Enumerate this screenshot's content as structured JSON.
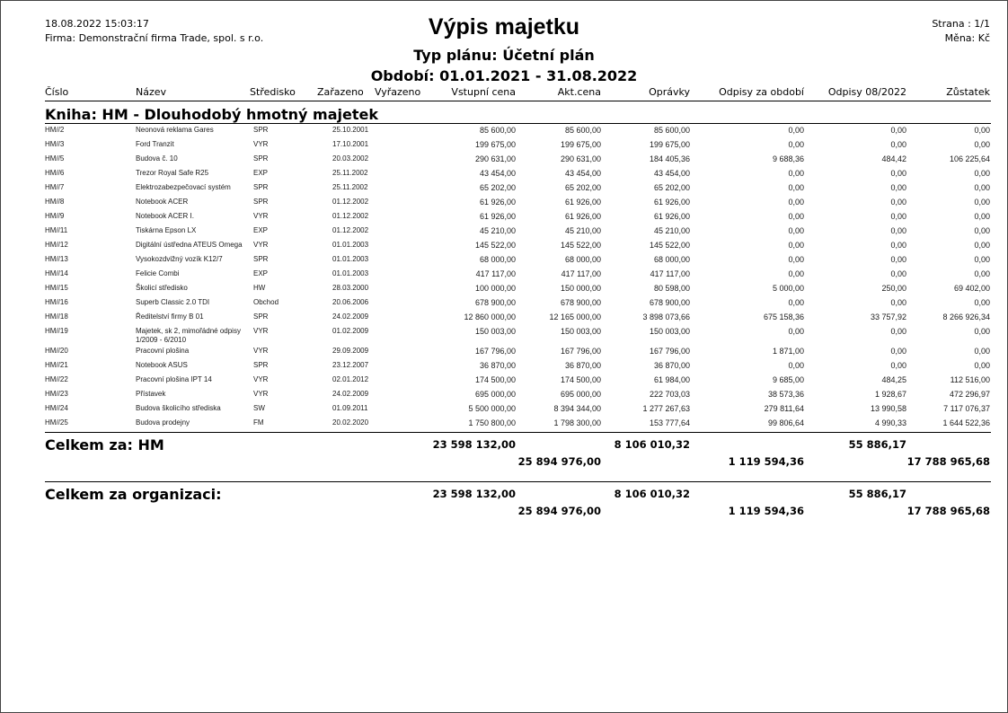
{
  "header": {
    "datetime": "18.08.2022 15:03:17",
    "company": "Firma: Demonstrační firma Trade, spol. s r.o.",
    "title": "Výpis majetku",
    "plan_type": "Typ plánu: Účetní plán",
    "period": "Období: 01.01.2021 - 31.08.2022",
    "page": "Strana : 1/1",
    "currency": "Měna: Kč"
  },
  "columns": [
    "Číslo",
    "Název",
    "Středisko",
    "Zařazeno",
    "Vyřazeno",
    "Vstupní cena",
    "Akt.cena",
    "Oprávky",
    "Odpisy za období",
    "Odpisy 08/2022",
    "Zůstatek"
  ],
  "book_title": "Kniha: HM - Dlouhodobý hmotný majetek",
  "rows": [
    [
      "HM//2",
      "Neonová reklama Gares",
      "SPR",
      "25.10.2001",
      "",
      "85 600,00",
      "85 600,00",
      "85 600,00",
      "0,00",
      "0,00",
      "0,00"
    ],
    [
      "HM//3",
      "Ford Tranzit",
      "VYR",
      "17.10.2001",
      "",
      "199 675,00",
      "199 675,00",
      "199 675,00",
      "0,00",
      "0,00",
      "0,00"
    ],
    [
      "HM//5",
      "Budova č. 10",
      "SPR",
      "20.03.2002",
      "",
      "290 631,00",
      "290 631,00",
      "184 405,36",
      "9 688,36",
      "484,42",
      "106 225,64"
    ],
    [
      "HM//6",
      "Trezor Royal Safe R25",
      "EXP",
      "25.11.2002",
      "",
      "43 454,00",
      "43 454,00",
      "43 454,00",
      "0,00",
      "0,00",
      "0,00"
    ],
    [
      "HM//7",
      "Elektrozabezpečovací systém",
      "SPR",
      "25.11.2002",
      "",
      "65 202,00",
      "65 202,00",
      "65 202,00",
      "0,00",
      "0,00",
      "0,00"
    ],
    [
      "HM//8",
      "Notebook ACER",
      "SPR",
      "01.12.2002",
      "",
      "61 926,00",
      "61 926,00",
      "61 926,00",
      "0,00",
      "0,00",
      "0,00"
    ],
    [
      "HM//9",
      "Notebook ACER I.",
      "VYR",
      "01.12.2002",
      "",
      "61 926,00",
      "61 926,00",
      "61 926,00",
      "0,00",
      "0,00",
      "0,00"
    ],
    [
      "HM//11",
      "Tiskárna Epson LX",
      "EXP",
      "01.12.2002",
      "",
      "45 210,00",
      "45 210,00",
      "45 210,00",
      "0,00",
      "0,00",
      "0,00"
    ],
    [
      "HM//12",
      "Digitální ústředna ATEUS Omega",
      "VYR",
      "01.01.2003",
      "",
      "145 522,00",
      "145 522,00",
      "145 522,00",
      "0,00",
      "0,00",
      "0,00"
    ],
    [
      "HM//13",
      "Vysokozdvižný vozík K12/7",
      "SPR",
      "01.01.2003",
      "",
      "68 000,00",
      "68 000,00",
      "68 000,00",
      "0,00",
      "0,00",
      "0,00"
    ],
    [
      "HM//14",
      "Felicie Combi",
      "EXP",
      "01.01.2003",
      "",
      "417 117,00",
      "417 117,00",
      "417 117,00",
      "0,00",
      "0,00",
      "0,00"
    ],
    [
      "HM//15",
      "Školicí středisko",
      "HW",
      "28.03.2000",
      "",
      "100 000,00",
      "150 000,00",
      "80 598,00",
      "5 000,00",
      "250,00",
      "69 402,00"
    ],
    [
      "HM//16",
      "Superb Classic  2.0 TDI",
      "Obchod",
      "20.06.2006",
      "",
      "678 900,00",
      "678 900,00",
      "678 900,00",
      "0,00",
      "0,00",
      "0,00"
    ],
    [
      "HM//18",
      "Ředitelství firmy B 01",
      "SPR",
      "24.02.2009",
      "",
      "12 860 000,00",
      "12 165 000,00",
      "3 898 073,66",
      "675 158,36",
      "33 757,92",
      "8 266 926,34"
    ],
    [
      "HM//19",
      "Majetek, sk 2, mimořádné odpisy 1/2009 - 6/2010",
      "VYR",
      "01.02.2009",
      "",
      "150 003,00",
      "150 003,00",
      "150 003,00",
      "0,00",
      "0,00",
      "0,00"
    ],
    [
      "HM//20",
      "Pracovní plošina",
      "VYR",
      "29.09.2009",
      "",
      "167 796,00",
      "167 796,00",
      "167 796,00",
      "1 871,00",
      "0,00",
      "0,00"
    ],
    [
      "HM//21",
      "Notebook ASUS",
      "SPR",
      "23.12.2007",
      "",
      "36 870,00",
      "36 870,00",
      "36 870,00",
      "0,00",
      "0,00",
      "0,00"
    ],
    [
      "HM//22",
      "Pracovní plošina IPT 14",
      "VYR",
      "02.01.2012",
      "",
      "174 500,00",
      "174 500,00",
      "61 984,00",
      "9 685,00",
      "484,25",
      "112 516,00"
    ],
    [
      "HM//23",
      "Přístavek",
      "VYR",
      "24.02.2009",
      "",
      "695 000,00",
      "695 000,00",
      "222 703,03",
      "38 573,36",
      "1 928,67",
      "472 296,97"
    ],
    [
      "HM//24",
      "Budova školicího střediska",
      "SW",
      "01.09.2011",
      "",
      "5 500 000,00",
      "8 394 344,00",
      "1 277 267,63",
      "279 811,64",
      "13 990,58",
      "7 117 076,37"
    ],
    [
      "HM//25",
      "Budova prodejny",
      "FM",
      "20.02.2020",
      "",
      "1 750 800,00",
      "1 798 300,00",
      "153 777,64",
      "99 806,64",
      "4 990,33",
      "1 644 522,36"
    ]
  ],
  "totals_book": {
    "label": "Celkem za: HM",
    "vstupni_cena": "23 598 132,00",
    "akt_cena": "25 894 976,00",
    "opravky": "8 106 010,32",
    "odpisy_obdobi": "1 119 594,36",
    "odpisy_mesic": "55 886,17",
    "zustatek": "17 788 965,68"
  },
  "totals_org": {
    "label": "Celkem za organizaci:",
    "vstupni_cena": "23 598 132,00",
    "akt_cena": "25 894 976,00",
    "opravky": "8 106 010,32",
    "odpisy_obdobi": "1 119 594,36",
    "odpisy_mesic": "55 886,17",
    "zustatek": "17 788 965,68"
  }
}
